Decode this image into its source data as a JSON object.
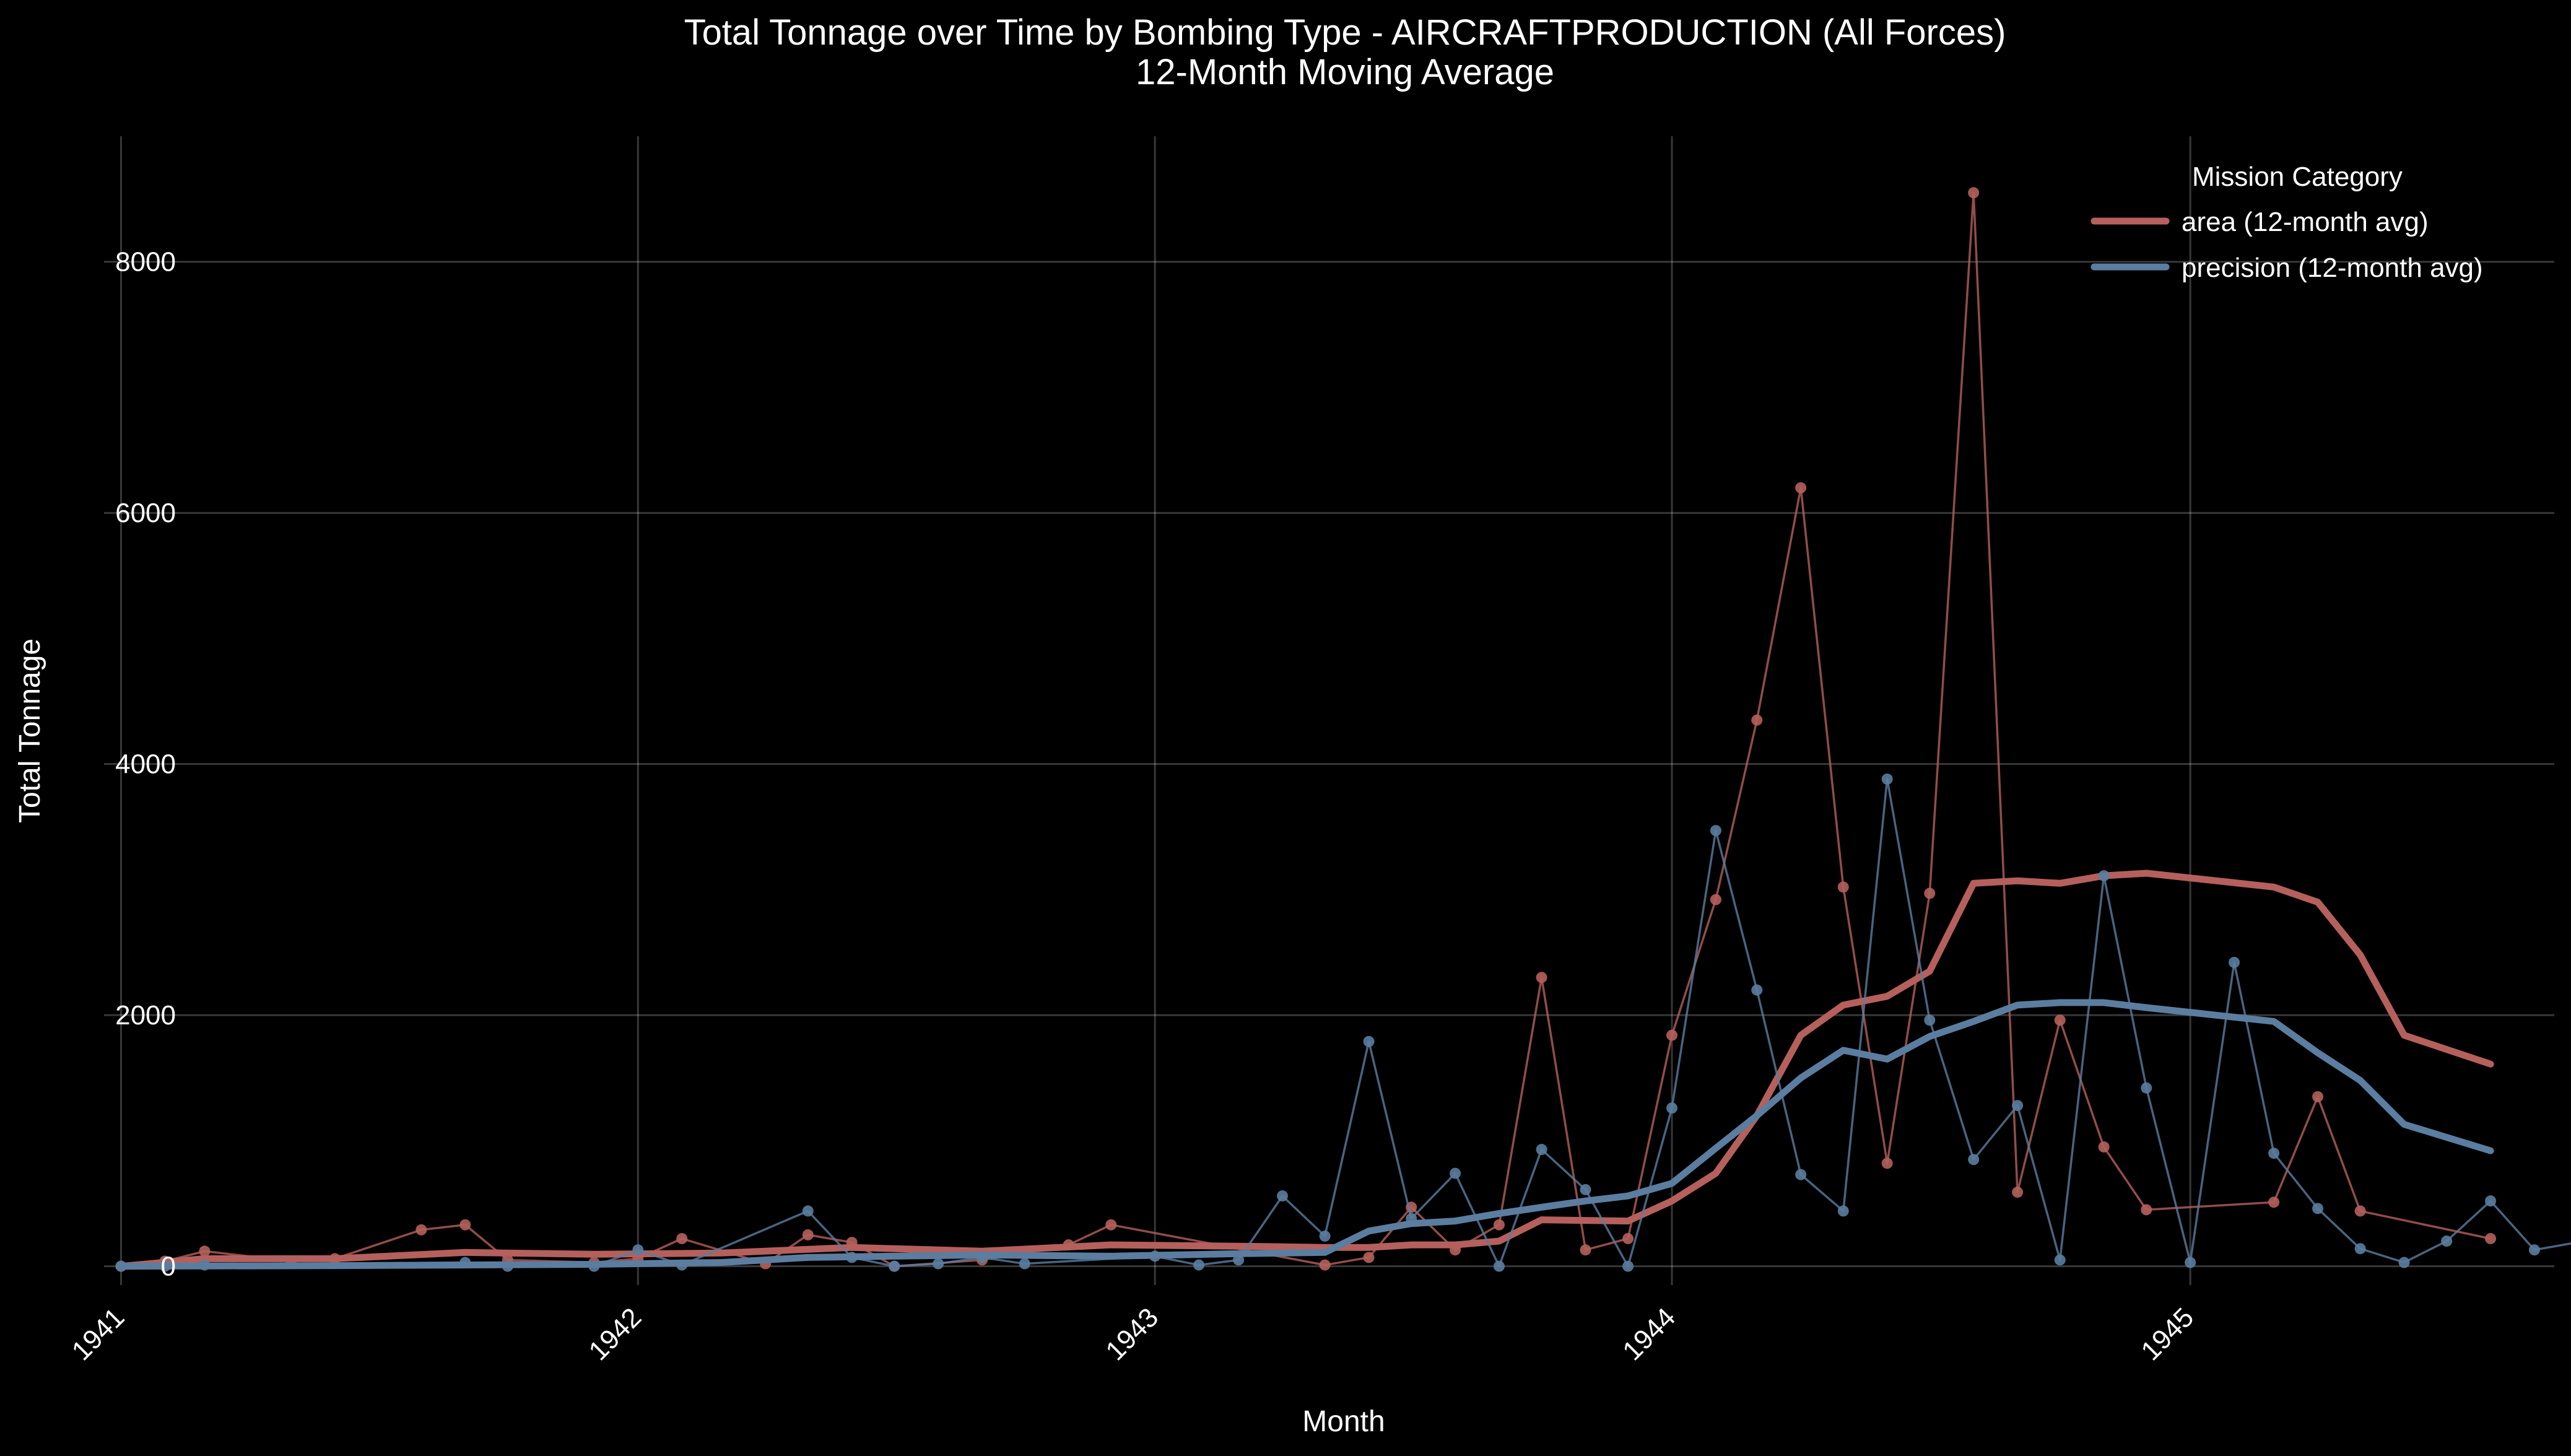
{
  "chart_data": {
    "type": "line",
    "title": "Total Tonnage over Time by Bombing Type - AIRCRAFTPRODUCTION (All Forces)",
    "subtitle": "12-Month Moving Average",
    "xlabel": "Month",
    "ylabel": "Total Tonnage",
    "x_ticks": [
      "1941",
      "1942",
      "1943",
      "1944",
      "1945"
    ],
    "y_ticks": [
      0,
      2000,
      4000,
      6000,
      8000
    ],
    "xlim": [
      "1940-12-20",
      "1945-09-15"
    ],
    "ylim": [
      -150,
      9000
    ],
    "grid": true,
    "legend": {
      "title": "Mission Category",
      "position": "top-right"
    },
    "series": [
      {
        "name": "area",
        "color": "#b5605c",
        "raw": [
          [
            "1941-01",
            0
          ],
          [
            "1941-02",
            40
          ],
          [
            "1941-03",
            120
          ],
          [
            "1941-05",
            40
          ],
          [
            "1941-06",
            60
          ],
          [
            "1941-08",
            290
          ],
          [
            "1941-09",
            330
          ],
          [
            "1941-10",
            50
          ],
          [
            "1941-12",
            30
          ],
          [
            "1942-01",
            60
          ],
          [
            "1942-02",
            220
          ],
          [
            "1942-04",
            20
          ],
          [
            "1942-05",
            250
          ],
          [
            "1942-06",
            190
          ],
          [
            "1942-07",
            0
          ],
          [
            "1942-09",
            50
          ],
          [
            "1942-11",
            170
          ],
          [
            "1942-12",
            330
          ],
          [
            "1943-05",
            10
          ],
          [
            "1943-06",
            70
          ],
          [
            "1943-07",
            470
          ],
          [
            "1943-08",
            130
          ],
          [
            "1943-09",
            330
          ],
          [
            "1943-10",
            2300
          ],
          [
            "1943-11",
            130
          ],
          [
            "1943-12",
            220
          ],
          [
            "1944-01",
            1840
          ],
          [
            "1944-02",
            2920
          ],
          [
            "1944-03",
            4350
          ],
          [
            "1944-04",
            6200
          ],
          [
            "1944-05",
            3020
          ],
          [
            "1944-06",
            820
          ],
          [
            "1944-07",
            2970
          ],
          [
            "1944-08",
            8550
          ],
          [
            "1944-09",
            590
          ],
          [
            "1944-10",
            1960
          ],
          [
            "1944-11",
            950
          ],
          [
            "1944-12",
            450
          ],
          [
            "1945-03",
            510
          ],
          [
            "1945-04",
            1350
          ],
          [
            "1945-05",
            440
          ],
          [
            "1945-08",
            220
          ]
        ],
        "avg_name": "area (12-month avg)",
        "avg": [
          [
            "1941-01",
            0
          ],
          [
            "1941-03",
            60
          ],
          [
            "1941-06",
            60
          ],
          [
            "1941-09",
            110
          ],
          [
            "1941-12",
            95
          ],
          [
            "1942-03",
            105
          ],
          [
            "1942-06",
            150
          ],
          [
            "1942-09",
            120
          ],
          [
            "1942-12",
            170
          ],
          [
            "1943-03",
            160
          ],
          [
            "1943-05",
            150
          ],
          [
            "1943-06",
            150
          ],
          [
            "1943-07",
            170
          ],
          [
            "1943-08",
            170
          ],
          [
            "1943-09",
            200
          ],
          [
            "1943-10",
            370
          ],
          [
            "1943-12",
            360
          ],
          [
            "1944-01",
            520
          ],
          [
            "1944-02",
            740
          ],
          [
            "1944-03",
            1200
          ],
          [
            "1944-04",
            1840
          ],
          [
            "1944-05",
            2080
          ],
          [
            "1944-06",
            2150
          ],
          [
            "1944-07",
            2350
          ],
          [
            "1944-08",
            3050
          ],
          [
            "1944-09",
            3070
          ],
          [
            "1944-10",
            3050
          ],
          [
            "1944-11",
            3110
          ],
          [
            "1944-12",
            3130
          ],
          [
            "1945-03",
            3020
          ],
          [
            "1945-04",
            2900
          ],
          [
            "1945-05",
            2480
          ],
          [
            "1945-06",
            1840
          ],
          [
            "1945-08",
            1610
          ]
        ]
      },
      {
        "name": "precision",
        "color": "#5b7da0",
        "raw": [
          [
            "1941-01",
            0
          ],
          [
            "1941-02",
            0
          ],
          [
            "1941-03",
            10
          ],
          [
            "1941-09",
            30
          ],
          [
            "1941-10",
            0
          ],
          [
            "1941-12",
            0
          ],
          [
            "1942-01",
            130
          ],
          [
            "1942-02",
            10
          ],
          [
            "1942-05",
            440
          ],
          [
            "1942-06",
            70
          ],
          [
            "1942-07",
            0
          ],
          [
            "1942-08",
            20
          ],
          [
            "1942-09",
            70
          ],
          [
            "1942-10",
            20
          ],
          [
            "1943-01",
            80
          ],
          [
            "1943-02",
            10
          ],
          [
            "1943-03",
            50
          ],
          [
            "1943-04",
            560
          ],
          [
            "1943-05",
            240
          ],
          [
            "1943-06",
            1790
          ],
          [
            "1943-07",
            380
          ],
          [
            "1943-08",
            740
          ],
          [
            "1943-09",
            0
          ],
          [
            "1943-10",
            930
          ],
          [
            "1943-11",
            610
          ],
          [
            "1943-12",
            0
          ],
          [
            "1944-01",
            1260
          ],
          [
            "1944-02",
            3470
          ],
          [
            "1944-03",
            2200
          ],
          [
            "1944-04",
            730
          ],
          [
            "1944-05",
            440
          ],
          [
            "1944-06",
            3880
          ],
          [
            "1944-07",
            1960
          ],
          [
            "1944-08",
            850
          ],
          [
            "1944-09",
            1280
          ],
          [
            "1944-10",
            50
          ],
          [
            "1944-11",
            3110
          ],
          [
            "1944-12",
            1420
          ],
          [
            "1945-01",
            30
          ],
          [
            "1945-02",
            2420
          ],
          [
            "1945-03",
            900
          ],
          [
            "1945-04",
            460
          ],
          [
            "1945-05",
            140
          ],
          [
            "1945-06",
            30
          ],
          [
            "1945-07",
            200
          ],
          [
            "1945-08",
            520
          ],
          [
            "1945-09",
            130
          ],
          [
            "1945-10",
            190
          ]
        ],
        "avg_name": "precision (12-month avg)",
        "avg": [
          [
            "1941-01",
            0
          ],
          [
            "1941-06",
            5
          ],
          [
            "1941-09",
            10
          ],
          [
            "1941-12",
            15
          ],
          [
            "1942-03",
            30
          ],
          [
            "1942-05",
            70
          ],
          [
            "1942-09",
            90
          ],
          [
            "1942-12",
            80
          ],
          [
            "1943-03",
            100
          ],
          [
            "1943-05",
            110
          ],
          [
            "1943-06",
            280
          ],
          [
            "1943-07",
            340
          ],
          [
            "1943-08",
            360
          ],
          [
            "1943-09",
            420
          ],
          [
            "1943-10",
            470
          ],
          [
            "1943-11",
            520
          ],
          [
            "1943-12",
            560
          ],
          [
            "1944-01",
            660
          ],
          [
            "1944-02",
            940
          ],
          [
            "1944-03",
            1200
          ],
          [
            "1944-04",
            1500
          ],
          [
            "1944-05",
            1720
          ],
          [
            "1944-06",
            1650
          ],
          [
            "1944-07",
            1830
          ],
          [
            "1944-08",
            1950
          ],
          [
            "1944-09",
            2080
          ],
          [
            "1944-10",
            2100
          ],
          [
            "1944-11",
            2100
          ],
          [
            "1944-12",
            2060
          ],
          [
            "1945-03",
            1950
          ],
          [
            "1945-04",
            1700
          ],
          [
            "1945-05",
            1480
          ],
          [
            "1945-06",
            1130
          ],
          [
            "1945-08",
            920
          ]
        ]
      }
    ]
  }
}
